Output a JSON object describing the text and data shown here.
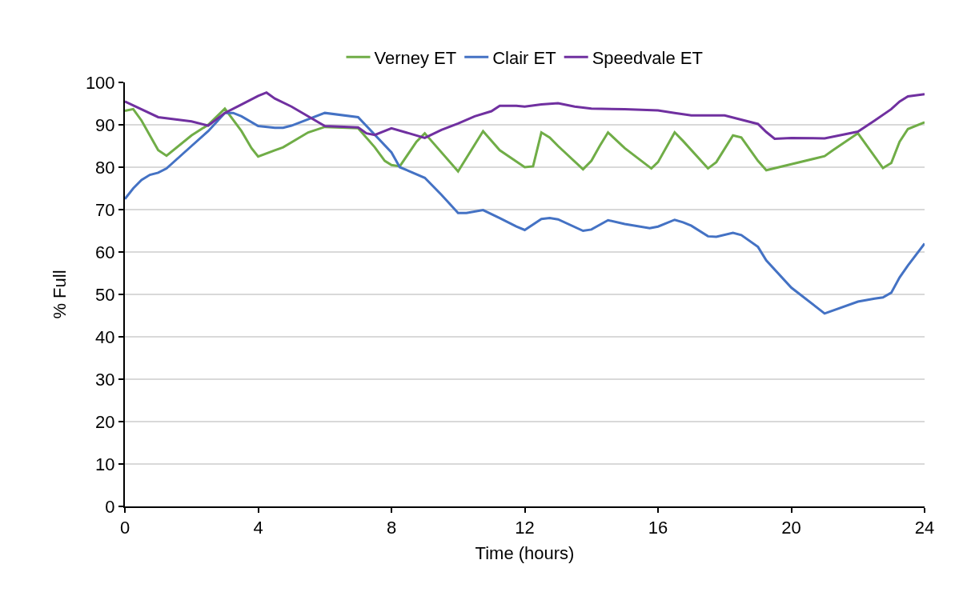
{
  "chart_data": {
    "type": "line",
    "xlabel": "Time (hours)",
    "ylabel": "% Full",
    "xlim": [
      0,
      24
    ],
    "xticks": [
      0,
      4,
      8,
      12,
      16,
      20,
      24
    ],
    "ylim": [
      0,
      100
    ],
    "yticks": [
      0,
      10,
      20,
      30,
      40,
      50,
      60,
      70,
      80,
      90,
      100
    ],
    "grid": "y",
    "legend": "top",
    "marker": "none",
    "line_style": "solid",
    "series": [
      {
        "name": "Verney ET",
        "color": "#70ad47",
        "x": [
          0,
          0.25,
          0.5,
          1,
          1.25,
          2,
          2.5,
          3,
          3.5,
          3.8,
          4,
          4.5,
          4.75,
          5.5,
          6,
          7,
          7.5,
          7.8,
          8,
          8.25,
          8.75,
          9,
          10,
          10.75,
          11.25,
          12,
          12.25,
          12.5,
          12.75,
          13,
          13.75,
          14,
          14.25,
          14.5,
          15,
          15.8,
          16,
          16.5,
          16.75,
          17.5,
          17.75,
          18.25,
          18.5,
          19,
          19.25,
          20,
          21,
          21.25,
          22,
          22.75,
          23,
          23.25,
          23.5,
          24
        ],
        "values": [
          93.3,
          93.7,
          91,
          84,
          82.7,
          87.5,
          90,
          93.8,
          88.5,
          84.5,
          82.5,
          84,
          84.7,
          88.2,
          89.5,
          89.2,
          84.7,
          81.5,
          80.5,
          80.2,
          86,
          88,
          79,
          88.5,
          84,
          80,
          80.2,
          88.2,
          87,
          85,
          79.5,
          81.5,
          85,
          88.2,
          84.5,
          79.7,
          81.2,
          88.2,
          86.2,
          79.7,
          81.2,
          87.5,
          87,
          81.5,
          79.3,
          80.7,
          82.6,
          84,
          88,
          79.8,
          81,
          86,
          89,
          90.6
        ]
      },
      {
        "name": "Clair ET",
        "color": "#4472c4",
        "x": [
          0,
          0.25,
          0.5,
          0.75,
          1,
          1.25,
          2,
          2.5,
          3,
          3.25,
          3.5,
          4,
          4.5,
          4.75,
          5,
          6,
          7,
          8,
          8.25,
          9,
          9.5,
          10,
          10.25,
          10.75,
          11.25,
          11.75,
          12,
          12.5,
          12.75,
          13,
          13.75,
          14,
          14.5,
          15,
          15.75,
          16,
          16.5,
          16.75,
          17,
          17.5,
          17.75,
          18.25,
          18.5,
          19,
          19.25,
          20,
          21,
          22,
          22.5,
          22.75,
          23,
          23.25,
          23.5,
          24
        ],
        "values": [
          72.5,
          75,
          77,
          78.2,
          78.7,
          79.7,
          85,
          88.5,
          92.8,
          92.8,
          92,
          89.7,
          89.3,
          89.3,
          89.8,
          92.8,
          91.8,
          83.5,
          80,
          77.5,
          73.5,
          69.2,
          69.2,
          69.9,
          68,
          66,
          65.2,
          67.8,
          68,
          67.7,
          65,
          65.3,
          67.5,
          66.6,
          65.6,
          66,
          67.6,
          67,
          66.2,
          63.7,
          63.6,
          64.5,
          64,
          61.2,
          58,
          51.6,
          45.5,
          48.3,
          49,
          49.3,
          50.4,
          54,
          56.8,
          62
        ]
      },
      {
        "name": "Speedvale ET",
        "color": "#7030a0",
        "x": [
          0,
          1,
          2,
          2.5,
          3,
          3.5,
          4,
          4.25,
          4.5,
          5,
          6,
          7,
          7.25,
          7.5,
          8,
          9,
          9.5,
          10,
          10.5,
          11,
          11.25,
          11.75,
          12,
          12.5,
          13,
          13.5,
          14,
          15,
          16,
          16.5,
          17,
          18,
          19,
          19.25,
          19.5,
          20,
          21,
          22,
          22.5,
          23,
          23.25,
          23.5,
          24
        ],
        "values": [
          95.5,
          91.8,
          90.8,
          89.8,
          92.8,
          94.8,
          96.8,
          97.6,
          96.2,
          94.3,
          89.7,
          89.4,
          88,
          87.6,
          89.2,
          86.9,
          88.8,
          90.3,
          92,
          93.2,
          94.5,
          94.5,
          94.3,
          94.8,
          95.1,
          94.3,
          93.8,
          93.7,
          93.4,
          92.8,
          92.2,
          92.2,
          90.2,
          88.3,
          86.7,
          86.9,
          86.8,
          88.4,
          91,
          93.7,
          95.5,
          96.7,
          97.2
        ]
      }
    ]
  }
}
